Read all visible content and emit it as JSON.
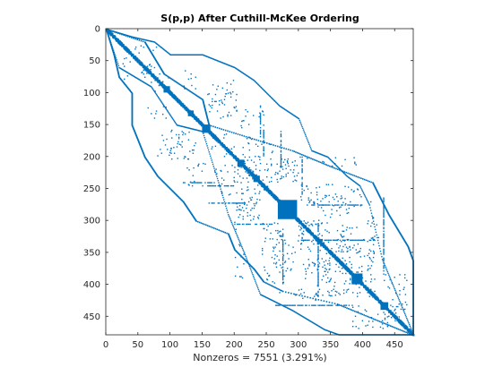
{
  "chart_data": {
    "type": "spy",
    "title": "S(p,p) After Cuthill-McKee Ordering",
    "xlabel": "Nonzeros = 7551 (3.291%)",
    "ylabel": "",
    "matrix_size": 479,
    "nonzeros": 7551,
    "density_percent": 3.291,
    "xlim": [
      0,
      479
    ],
    "ylim": [
      479,
      0
    ],
    "x_ticks": [
      "0",
      "50",
      "100",
      "150",
      "200",
      "250",
      "300",
      "350",
      "400",
      "450"
    ],
    "y_ticks": [
      "0",
      "50",
      "100",
      "150",
      "200",
      "250",
      "300",
      "350",
      "400",
      "450"
    ],
    "marker_color": "#0072BD",
    "grid": false,
    "dense_blocks": [
      {
        "row_start": 90,
        "row_end": 100,
        "col_start": 90,
        "col_end": 100
      },
      {
        "row_start": 128,
        "row_end": 137,
        "col_start": 128,
        "col_end": 137
      },
      {
        "row_start": 150,
        "row_end": 163,
        "col_start": 150,
        "col_end": 163
      },
      {
        "row_start": 166,
        "row_end": 172,
        "col_start": 166,
        "col_end": 172
      },
      {
        "row_start": 205,
        "row_end": 216,
        "col_start": 205,
        "col_end": 216
      },
      {
        "row_start": 230,
        "row_end": 240,
        "col_start": 230,
        "col_end": 240
      },
      {
        "row_start": 246,
        "row_end": 253,
        "col_start": 246,
        "col_end": 253
      },
      {
        "row_start": 268,
        "row_end": 298,
        "col_start": 268,
        "col_end": 298
      },
      {
        "row_start": 383,
        "row_end": 400,
        "col_start": 383,
        "col_end": 400
      },
      {
        "row_start": 428,
        "row_end": 440,
        "col_start": 428,
        "col_end": 440
      }
    ]
  }
}
